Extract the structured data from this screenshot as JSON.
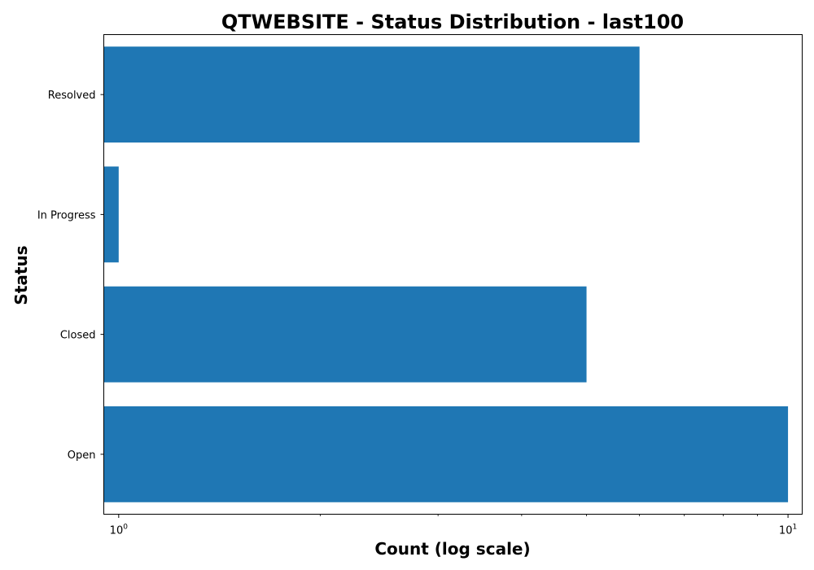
{
  "chart_data": {
    "type": "bar",
    "orientation": "horizontal",
    "title": "QTWEBSITE - Status Distribution - last100",
    "xlabel": "Count (log scale)",
    "ylabel": "Status",
    "x_scale": "log",
    "xlim": [
      0.95,
      10.5
    ],
    "categories": [
      "Open",
      "Closed",
      "In Progress",
      "Resolved"
    ],
    "values": [
      10,
      5,
      1,
      6
    ],
    "bar_color": "#1f77b4",
    "grid": false,
    "x_major_ticks": [
      {
        "value": 1,
        "base": "10",
        "exp": "0"
      },
      {
        "value": 10,
        "base": "10",
        "exp": "1"
      }
    ],
    "x_minor_ticks": [
      2,
      3,
      4,
      5,
      6,
      7,
      8,
      9
    ]
  }
}
